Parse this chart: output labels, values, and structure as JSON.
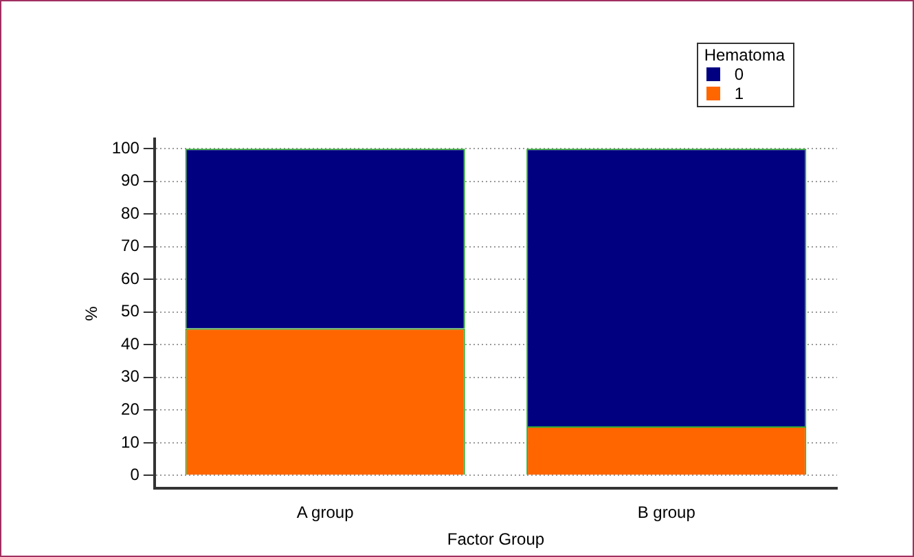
{
  "chart_data": {
    "type": "bar",
    "stacked": true,
    "categories": [
      "A group",
      "B group"
    ],
    "series": [
      {
        "name": "1",
        "color": "#ff6600",
        "values": [
          45,
          15
        ]
      },
      {
        "name": "0",
        "color": "#000080",
        "values": [
          55,
          85
        ]
      }
    ],
    "xlabel": "Factor Group",
    "ylabel": "%",
    "legend_title": "Hematoma",
    "legend": "top right",
    "grid": "y",
    "ylim": [
      -4,
      103
    ],
    "yticks": [
      0,
      10,
      20,
      30,
      40,
      50,
      60,
      70,
      80,
      90,
      100
    ]
  }
}
